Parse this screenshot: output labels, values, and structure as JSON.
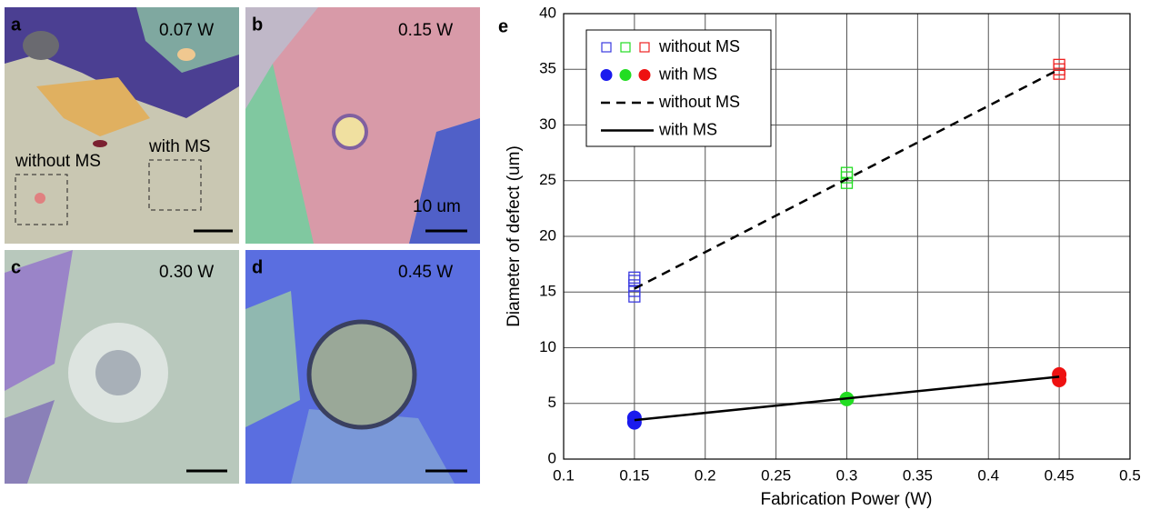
{
  "panels": [
    {
      "label": "a",
      "power": "0.07 W",
      "annotations": [
        "without MS",
        "with MS"
      ]
    },
    {
      "label": "b",
      "power": "0.15 W",
      "scale_label": "10 um"
    },
    {
      "label": "c",
      "power": "0.30 W"
    },
    {
      "label": "d",
      "power": "0.45 W"
    }
  ],
  "chart_data": {
    "type": "scatter",
    "panel_label": "e",
    "x_label": "Fabrication Power (W)",
    "y_label": "Diameter of defect (um)",
    "xlim": [
      0.1,
      0.5
    ],
    "xticks": [
      0.1,
      0.15,
      0.2,
      0.25,
      0.3,
      0.35,
      0.4,
      0.45,
      0.5
    ],
    "ylim": [
      0,
      40
    ],
    "yticks": [
      0,
      5,
      10,
      15,
      20,
      25,
      30,
      35,
      40
    ],
    "grid": true,
    "legend": "upper left",
    "series": [
      {
        "name": "without MS",
        "marker": "square",
        "x": [
          0.15,
          0.15,
          0.15,
          0.15,
          0.15,
          0.3,
          0.3,
          0.3,
          0.45,
          0.45,
          0.45
        ],
        "values": [
          14.6,
          15.1,
          15.6,
          16.0,
          16.3,
          24.8,
          25.3,
          25.7,
          34.6,
          35.0,
          35.4
        ],
        "colors": [
          "#3a3ae0",
          "#3a3ae0",
          "#3a3ae0",
          "#3a3ae0",
          "#3a3ae0",
          "#22dd22",
          "#22dd22",
          "#22dd22",
          "#ee2222",
          "#ee2222",
          "#ee2222"
        ]
      },
      {
        "name": "with MS",
        "marker": "circle",
        "x": [
          0.15,
          0.15,
          0.3,
          0.45,
          0.45
        ],
        "values": [
          3.3,
          3.7,
          5.4,
          7.1,
          7.6
        ],
        "colors": [
          "#1a1aee",
          "#1a1aee",
          "#22dd22",
          "#ee1111",
          "#ee1111"
        ]
      },
      {
        "name": "without MS",
        "marker": "line",
        "dash": true,
        "color": "#000000",
        "x": [
          0.15,
          0.45
        ],
        "values": [
          15.3,
          35.0
        ]
      },
      {
        "name": "with MS",
        "marker": "line",
        "dash": false,
        "color": "#000000",
        "x": [
          0.15,
          0.45
        ],
        "values": [
          3.5,
          7.4
        ]
      }
    ]
  }
}
